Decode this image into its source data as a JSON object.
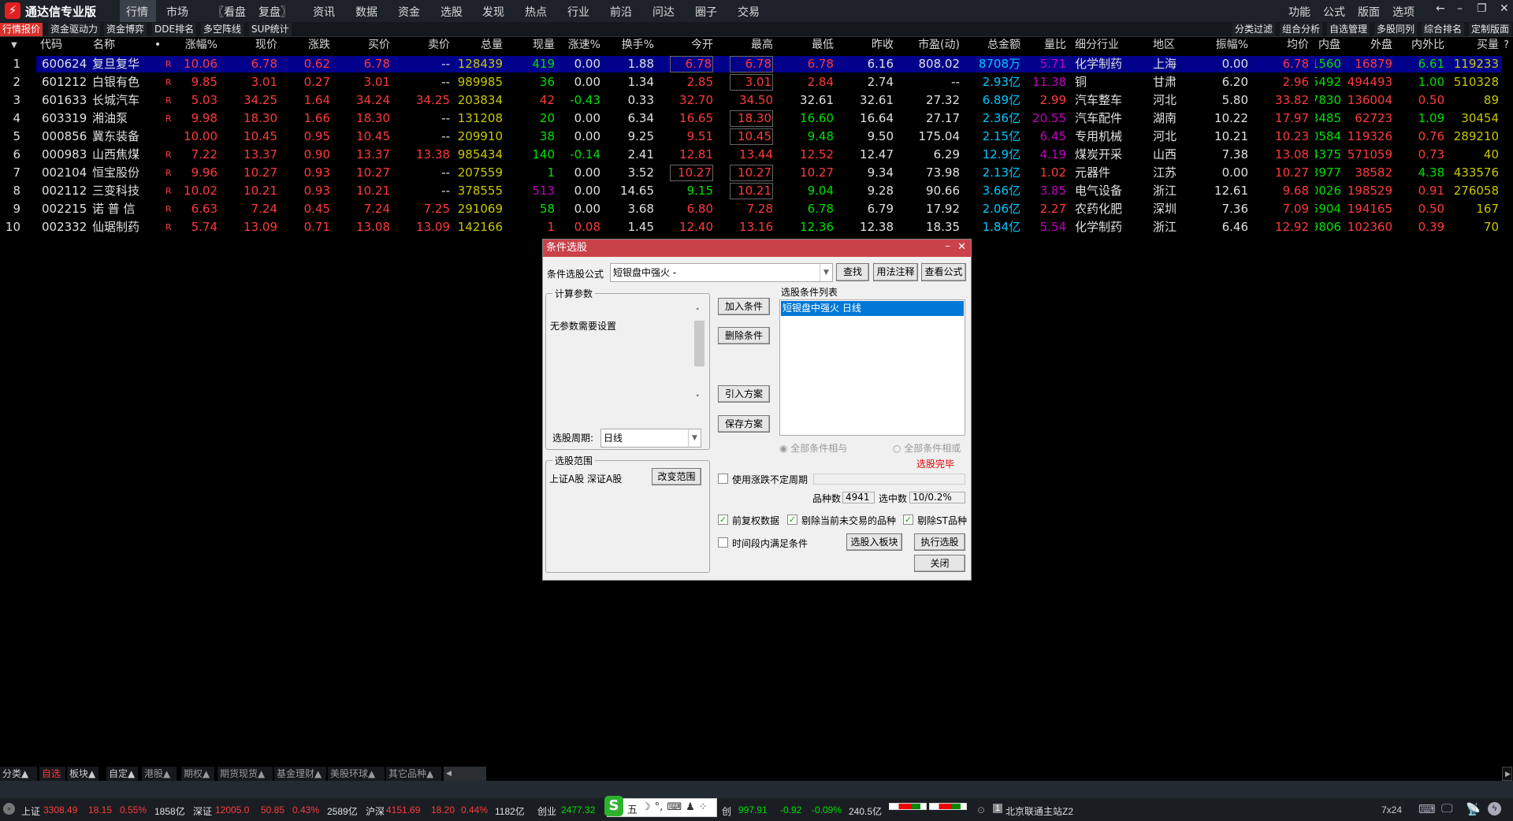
{
  "app": {
    "title": "通达信专业版",
    "logo": "tdx-logo"
  },
  "menu": {
    "items": [
      "行情",
      "市场",
      "〖看盘",
      "复盘〗",
      "资讯",
      "数据",
      "资金",
      "选股",
      "发现",
      "热点",
      "行业",
      "前沿",
      "问达",
      "圈子",
      "交易"
    ],
    "right": [
      "功能",
      "公式",
      "版面",
      "选项"
    ]
  },
  "subbar": {
    "left": [
      "行情报价",
      "资金驱动力",
      "资金博弈",
      "DDE排名",
      "多空阵线",
      "SUP统计"
    ],
    "right": [
      "分类过滤",
      "组合分析",
      "自选管理",
      "多股同列",
      "综合排名",
      "定制版面"
    ]
  },
  "table": {
    "headers": [
      "▼",
      "代码",
      "名称",
      "•",
      "涨幅%",
      "现价",
      "涨跌",
      "买价",
      "卖价",
      "总量",
      "现量",
      "涨速%",
      "换手%",
      "今开",
      "最高",
      "最低",
      "昨收",
      "市盈(动)",
      "总金额",
      "量比",
      "细分行业",
      "地区",
      "振幅%",
      "均价",
      "内盘",
      "外盘",
      "内外比",
      "买量"
    ],
    "help": "?",
    "selected_row": 0,
    "rows": [
      {
        "cells": [
          "1",
          "600624",
          "复旦复华",
          "R",
          "10.06",
          "6.78",
          "0.62",
          "6.78",
          "--",
          "128439",
          "419",
          "0.00",
          "1.88",
          "6.78",
          "6.78",
          "6.78",
          "6.16",
          "808.02",
          "8708万",
          "5.71",
          "化学制药",
          "上海",
          "0.00",
          "6.78",
          "1560",
          "16879",
          "6.61",
          "119233"
        ],
        "colors": "wwwrrrrrwygwwrrrwwcmwwwrgrgy",
        "boxed": [
          13,
          14
        ]
      },
      {
        "cells": [
          "2",
          "601212",
          "白银有色",
          "R",
          "9.85",
          "3.01",
          "0.27",
          "3.01",
          "--",
          "989985",
          "36",
          "0.00",
          "1.34",
          "2.85",
          "3.01",
          "2.84",
          "2.74",
          "--",
          "2.93亿",
          "11.38",
          "铜",
          "甘肃",
          "6.20",
          "2.96",
          "5492",
          "494493",
          "1.00",
          "510328"
        ],
        "colors": "wwwrrrrrwygwwrrrwwcmwwwrgrgy",
        "boxed": [
          14
        ]
      },
      {
        "cells": [
          "3",
          "601633",
          "长城汽车",
          "R",
          "5.03",
          "34.25",
          "1.64",
          "34.24",
          "34.25",
          "203834",
          "42",
          "-0.43",
          "0.33",
          "32.70",
          "34.50",
          "32.61",
          "32.61",
          "27.32",
          "6.89亿",
          "2.99",
          "汽车整车",
          "河北",
          "5.80",
          "33.82",
          "7830",
          "136004",
          "0.50",
          "89"
        ],
        "colors": "wwwrrrrrryrgwrrwwwcrwwwrgrry",
        "boxed": []
      },
      {
        "cells": [
          "4",
          "603319",
          "湘油泵",
          "R",
          "9.98",
          "18.30",
          "1.66",
          "18.30",
          "--",
          "131208",
          "20",
          "0.00",
          "6.34",
          "16.65",
          "18.30",
          "16.60",
          "16.64",
          "27.17",
          "2.36亿",
          "20.55",
          "汽车配件",
          "湖南",
          "10.22",
          "17.97",
          "3485",
          "62723",
          "1.09",
          "30454"
        ],
        "colors": "wwwrrrrrwygwwrrgwwcmwwwrgrgy",
        "boxed": [
          14
        ]
      },
      {
        "cells": [
          "5",
          "000856",
          "冀东装备",
          "",
          "10.00",
          "10.45",
          "0.95",
          "10.45",
          "--",
          "209910",
          "38",
          "0.00",
          "9.25",
          "9.51",
          "10.45",
          "9.48",
          "9.50",
          "175.04",
          "2.15亿",
          "6.45",
          "专用机械",
          "河北",
          "10.21",
          "10.23",
          "0584",
          "119326",
          "0.76",
          "289210"
        ],
        "colors": "wwwrrrrrwygwwrrgwwcmwwwrgrry",
        "boxed": [
          14
        ]
      },
      {
        "cells": [
          "6",
          "000983",
          "山西焦煤",
          "R",
          "7.22",
          "13.37",
          "0.90",
          "13.37",
          "13.38",
          "985434",
          "140",
          "-0.14",
          "2.41",
          "12.81",
          "13.44",
          "12.52",
          "12.47",
          "6.29",
          "12.9亿",
          "4.19",
          "煤炭开采",
          "山西",
          "7.38",
          "13.08",
          "4375",
          "571059",
          "0.73",
          "40"
        ],
        "colors": "wwwrrrrrryggwrrrwwcmwwwrgrry",
        "boxed": []
      },
      {
        "cells": [
          "7",
          "002104",
          "恒宝股份",
          "R",
          "9.96",
          "10.27",
          "0.93",
          "10.27",
          "--",
          "207559",
          "1",
          "0.00",
          "3.52",
          "10.27",
          "10.27",
          "10.27",
          "9.34",
          "73.98",
          "2.13亿",
          "1.02",
          "元器件",
          "江苏",
          "0.00",
          "10.27",
          "3977",
          "38582",
          "4.38",
          "433576"
        ],
        "colors": "wwwrrrrrwygwwrrrwwcrwwwrgrgy",
        "boxed": [
          13,
          14
        ]
      },
      {
        "cells": [
          "8",
          "002112",
          "三变科技",
          "R",
          "10.02",
          "10.21",
          "0.93",
          "10.21",
          "--",
          "378555",
          "513",
          "0.00",
          "14.65",
          "9.15",
          "10.21",
          "9.04",
          "9.28",
          "90.66",
          "3.66亿",
          "3.85",
          "电气设备",
          "浙江",
          "12.61",
          "9.68",
          "0026",
          "198529",
          "0.91",
          "276058"
        ],
        "colors": "wwwrrrrrwymwwgrgwwcmwwwrgrry",
        "boxed": [
          14
        ]
      },
      {
        "cells": [
          "9",
          "002215",
          "诺 普 信",
          "R",
          "6.63",
          "7.24",
          "0.45",
          "7.24",
          "7.25",
          "291069",
          "58",
          "0.00",
          "3.68",
          "6.80",
          "7.28",
          "6.78",
          "6.79",
          "17.92",
          "2.06亿",
          "2.27",
          "农药化肥",
          "深圳",
          "7.36",
          "7.09",
          "5904",
          "194165",
          "0.50",
          "167"
        ],
        "colors": "wwwrrrrrrygwwrrgwwcrwwwrgrry",
        "boxed": []
      },
      {
        "cells": [
          "10",
          "002332",
          "仙琚制药",
          "R",
          "5.74",
          "13.09",
          "0.71",
          "13.08",
          "13.09",
          "142166",
          "1",
          "0.08",
          "1.45",
          "12.40",
          "13.16",
          "12.36",
          "12.38",
          "18.35",
          "1.84亿",
          "5.54",
          "化学制药",
          "浙江",
          "6.46",
          "12.92",
          "9806",
          "102360",
          "0.39",
          "70"
        ],
        "colors": "wwwrrrrrryrrwrrgwwcmwwwrgrry",
        "boxed": []
      }
    ]
  },
  "dialog": {
    "title": "条件选股",
    "formula_label": "条件选股公式",
    "formula_value": "短银盘中强火 -",
    "find": "查找",
    "usage": "用法注释",
    "view_formula": "查看公式",
    "params_group": "计算参数",
    "params_text": "无参数需要设置",
    "period_label": "选股周期:",
    "period_value": "日线",
    "add": "加入条件",
    "delete": "删除条件",
    "import": "引入方案",
    "save": "保存方案",
    "list_label": "选股条件列表",
    "list_items": [
      "短银盘中强火  日线"
    ],
    "radio_and": "全部条件相与",
    "radio_or": "全部条件相或",
    "status": "选股完毕",
    "range_group": "选股范围",
    "range_text": "上证A股 深证A股",
    "change_range": "改变范围",
    "use_period": "使用涨跌不定周期",
    "count_label": "品种数",
    "count_value": "4941",
    "selected_label": "选中数",
    "selected_value": "10/0.2%",
    "cb_fq": "前复权数据",
    "cb_untraded": "剔除当前未交易的品种",
    "cb_st": "剔除ST品种",
    "cb_time": "时间段内满足条件",
    "to_block": "选股入板块",
    "execute": "执行选股",
    "close": "关闭",
    "checked": {
      "use_period": false,
      "fq": true,
      "untraded": true,
      "st": true,
      "time": false
    }
  },
  "bottom_tabs": [
    "分类▲",
    "自选",
    "板块▲",
    "自定▲",
    "港股▲",
    "期权▲",
    "期货现货▲",
    "基金理财▲",
    "美股环球▲",
    "其它品种▲"
  ],
  "status": {
    "sh": {
      "name": "上证",
      "v": "3308.49",
      "c": "18.15",
      "p": "0.55%",
      "amt": "1858亿"
    },
    "sz": {
      "name": "深证",
      "v": "12005.0",
      "c": "50.85",
      "p": "0.43%",
      "amt": "2589亿"
    },
    "hs": {
      "name": "沪深",
      "v": "4151.69",
      "c": "18.20",
      "p": "0.44%",
      "amt": "1182亿"
    },
    "cy": {
      "name": "创业",
      "v": "2477.32"
    },
    "kc": {
      "name": "创",
      "v": "997.91",
      "c": "-0.92",
      "p": "-0.09%",
      "amt": "240.5亿"
    },
    "server": "北京联通主站Z2",
    "server_no": "1",
    "clock": "7x24",
    "ime": [
      "五",
      "☽",
      "°,",
      "⌨",
      "♟",
      "⁘"
    ]
  },
  "colors": {
    "up": "#ff3a3a",
    "down": "#00e000",
    "volume": "#c8c800",
    "amount": "#00c8ff",
    "selected": "#00008a",
    "dialog_title": "#c9424a"
  }
}
